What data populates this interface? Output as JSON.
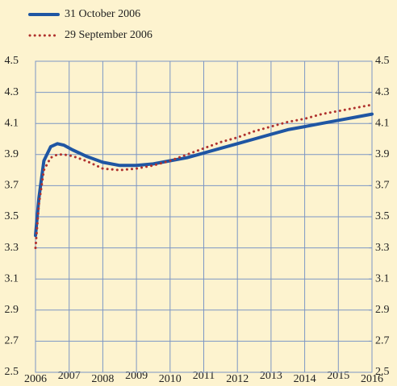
{
  "chart_data": {
    "type": "line",
    "x": [
      2006,
      2006.1,
      2006.25,
      2006.45,
      2006.65,
      2006.85,
      2007.1,
      2007.5,
      2008,
      2008.5,
      2009,
      2009.5,
      2010,
      2010.5,
      2011,
      2011.5,
      2012,
      2012.5,
      2013,
      2013.5,
      2014,
      2014.5,
      2015,
      2015.5,
      2016
    ],
    "series": [
      {
        "name": "31 October 2006",
        "color": "#1f56a3",
        "dashed": false,
        "values": [
          3.38,
          3.62,
          3.86,
          3.95,
          3.97,
          3.96,
          3.93,
          3.89,
          3.85,
          3.83,
          3.83,
          3.84,
          3.86,
          3.88,
          3.91,
          3.94,
          3.97,
          4.0,
          4.03,
          4.06,
          4.08,
          4.1,
          4.12,
          4.14,
          4.16
        ]
      },
      {
        "name": "29 September 2006",
        "color": "#b0322e",
        "dashed": true,
        "values": [
          3.3,
          3.58,
          3.8,
          3.88,
          3.9,
          3.9,
          3.89,
          3.86,
          3.81,
          3.8,
          3.81,
          3.83,
          3.86,
          3.9,
          3.94,
          3.98,
          4.01,
          4.05,
          4.08,
          4.11,
          4.13,
          4.16,
          4.18,
          4.2,
          4.22
        ]
      }
    ],
    "xlim": [
      2006,
      2016
    ],
    "xticks": [
      2006,
      2007,
      2008,
      2009,
      2010,
      2011,
      2012,
      2013,
      2014,
      2015,
      2016
    ],
    "ylim": [
      2.5,
      4.5
    ],
    "yticks": [
      2.5,
      2.7,
      2.9,
      3.1,
      3.3,
      3.5,
      3.7,
      3.9,
      4.1,
      4.3,
      4.5
    ],
    "y2lim": [
      2.5,
      4.5
    ],
    "y2ticks": [
      2.5,
      2.7,
      2.9,
      3.1,
      3.3,
      3.5,
      3.7,
      3.9,
      4.1,
      4.3,
      4.5
    ],
    "grid": true
  }
}
